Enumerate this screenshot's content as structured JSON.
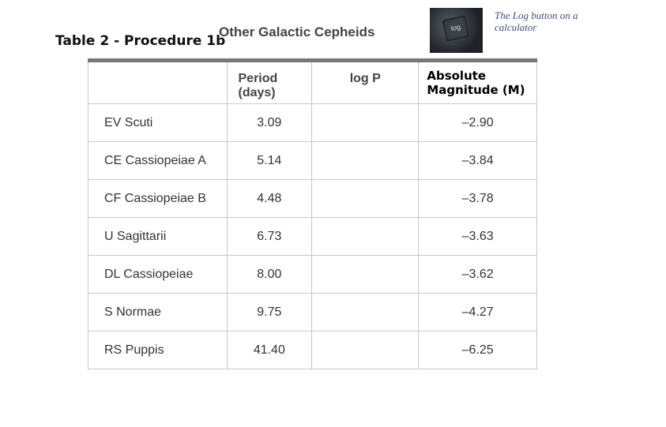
{
  "header": {
    "label": "Table 2 - Procedure 1b",
    "title": "Other Galactic Cepheids"
  },
  "image": {
    "key_text": "log",
    "caption": "The Log button on a calculator"
  },
  "table": {
    "headers": [
      "Period (days)",
      "log P",
      "Absolute Magnitude (M)"
    ],
    "rows": [
      [
        "EV Scuti",
        "3.09",
        "–2.90"
      ],
      [
        "CE Cassiopeiae A",
        "5.14",
        "–3.84"
      ],
      [
        "CF Cassiopeiae B",
        "4.48",
        "–3.78"
      ],
      [
        "U Sagittarii",
        "6.73",
        "–3.63"
      ],
      [
        "DL Cassiopeiae",
        "8.00",
        "–3.62"
      ],
      [
        "S Normae",
        "9.75",
        "–4.27"
      ],
      [
        "RS Puppis",
        "41.40",
        "–6.25"
      ]
    ]
  }
}
